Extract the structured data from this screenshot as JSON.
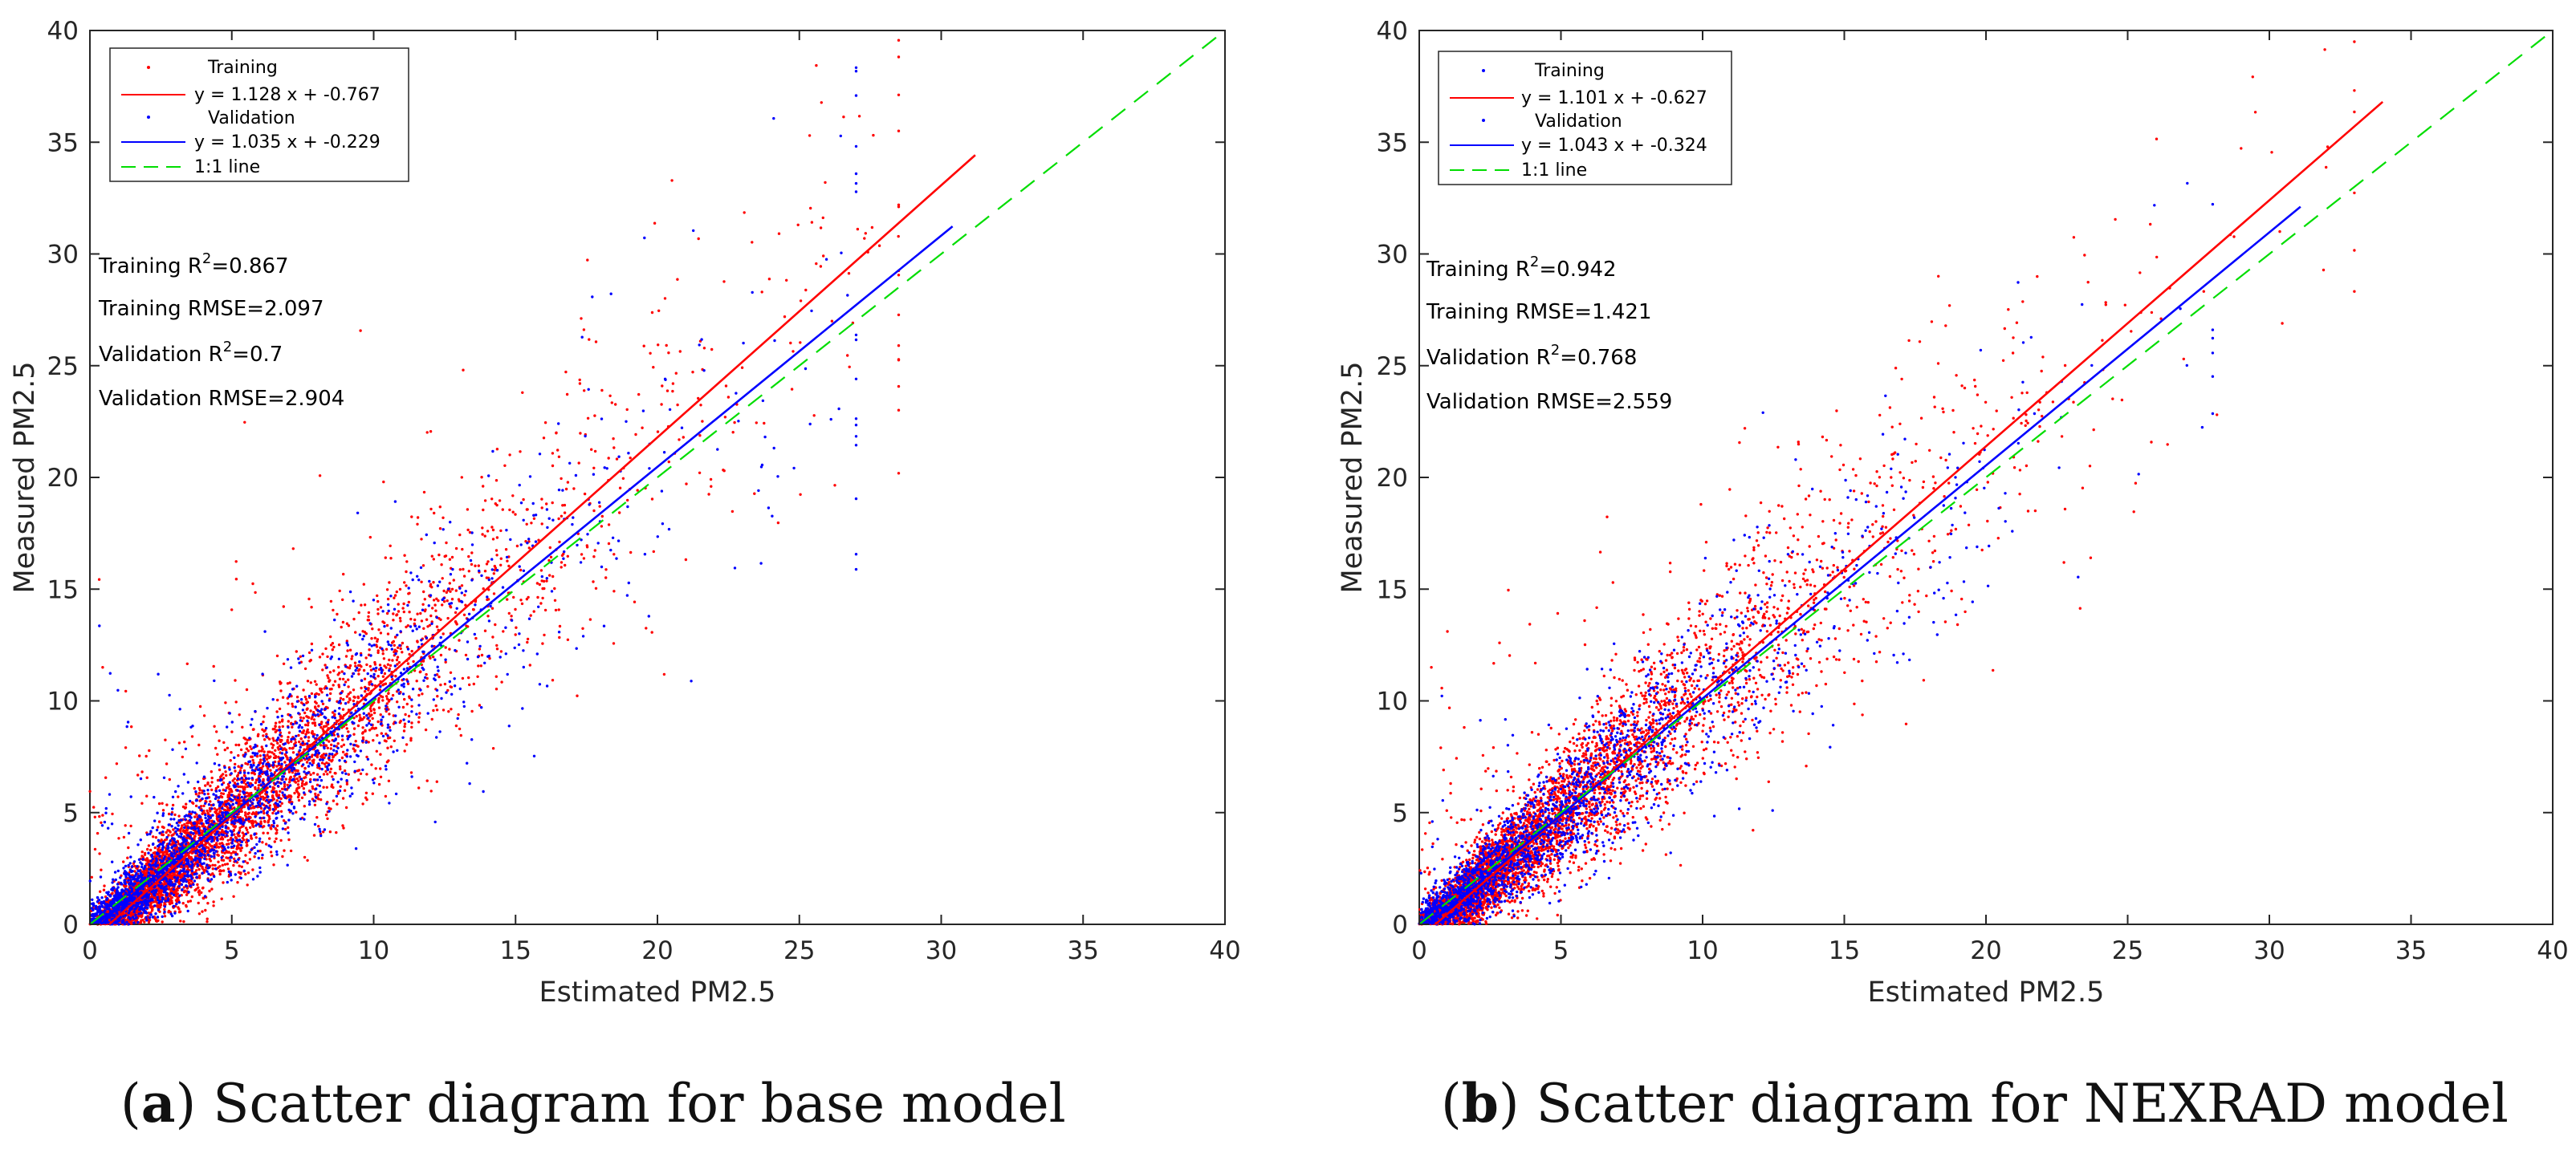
{
  "chart_data": [
    {
      "type": "scatter",
      "panel": "a",
      "caption_letter": "a",
      "caption_text": " Scatter diagram for base model",
      "xlabel": "Estimated PM2.5",
      "ylabel": "Measured PM2.5",
      "xlim": [
        0,
        40
      ],
      "ylim": [
        0,
        40
      ],
      "xticks": [
        0,
        5,
        10,
        15,
        20,
        25,
        30,
        35,
        40
      ],
      "yticks": [
        0,
        5,
        10,
        15,
        20,
        25,
        30,
        35,
        40
      ],
      "legend": [
        "Training",
        "y = 1.128 x + -0.767",
        "Validation",
        "y = 1.035 x + -0.229",
        "1:1 line"
      ],
      "legend_position": "top-left",
      "annotations": {
        "training_r2_prefix": "Training R",
        "training_r2_value": "=0.867",
        "training_rmse": "Training RMSE=2.097",
        "validation_r2_prefix": "Validation R",
        "validation_r2_value": "=0.7",
        "validation_rmse": "Validation RMSE=2.904",
        "superscript": "2"
      },
      "series": [
        {
          "name": "Training",
          "kind": "points",
          "color": "#ff0000",
          "slope": 1.128,
          "intercept": -0.767,
          "x_max": 28.5,
          "n_points": 5000
        },
        {
          "name": "y = 1.128 x + -0.767",
          "kind": "fit",
          "color": "#ff0000",
          "slope": 1.128,
          "intercept": -0.767,
          "x_range": [
            0,
            31.2
          ]
        },
        {
          "name": "Validation",
          "kind": "points",
          "color": "#0000ff",
          "slope": 1.035,
          "intercept": -0.229,
          "x_max": 27,
          "n_points": 2200
        },
        {
          "name": "y = 1.035 x + -0.229",
          "kind": "fit",
          "color": "#0000ff",
          "slope": 1.035,
          "intercept": -0.229,
          "x_range": [
            0,
            30.4
          ]
        },
        {
          "name": "1:1 line",
          "kind": "identity",
          "color": "#00dd00",
          "x_range": [
            0,
            40
          ]
        }
      ],
      "training_r2": 0.867,
      "training_rmse": 2.097,
      "validation_r2": 0.7,
      "validation_rmse": 2.904
    },
    {
      "type": "scatter",
      "panel": "b",
      "caption_letter": "b",
      "caption_text": " Scatter diagram for NEXRAD model",
      "xlabel": "Estimated PM2.5",
      "ylabel": "Measured PM2.5",
      "xlim": [
        0,
        40
      ],
      "ylim": [
        0,
        40
      ],
      "xticks": [
        0,
        5,
        10,
        15,
        20,
        25,
        30,
        35,
        40
      ],
      "yticks": [
        0,
        5,
        10,
        15,
        20,
        25,
        30,
        35,
        40
      ],
      "legend": [
        "Training",
        "y = 1.101 x + -0.627",
        "Validation",
        "y = 1.043 x + -0.324",
        "1:1 line"
      ],
      "legend_position": "top-left",
      "annotations": {
        "training_r2_prefix": "Training R",
        "training_r2_value": "=0.942",
        "training_rmse": "Training RMSE=1.421",
        "validation_r2_prefix": "Validation R",
        "validation_r2_value": "=0.768",
        "validation_rmse": "Validation RMSE=2.559",
        "superscript": "2"
      },
      "series": [
        {
          "name": "Training",
          "kind": "points",
          "color": "#ff0000",
          "slope": 1.101,
          "intercept": -0.627,
          "x_max": 33,
          "n_points": 5000
        },
        {
          "name": "y = 1.101 x + -0.627",
          "kind": "fit",
          "color": "#ff0000",
          "slope": 1.101,
          "intercept": -0.627,
          "x_range": [
            0,
            34.0
          ]
        },
        {
          "name": "Validation",
          "kind": "points",
          "color": "#0000ff",
          "slope": 1.043,
          "intercept": -0.324,
          "x_max": 28,
          "n_points": 2200
        },
        {
          "name": "y = 1.043 x + -0.324",
          "kind": "fit",
          "color": "#0000ff",
          "slope": 1.043,
          "intercept": -0.324,
          "x_range": [
            0,
            31.1
          ]
        },
        {
          "name": "1:1 line",
          "kind": "identity",
          "color": "#00dd00",
          "x_range": [
            0,
            40
          ]
        }
      ],
      "training_r2": 0.942,
      "training_rmse": 1.421,
      "validation_r2": 0.768,
      "validation_rmse": 2.559
    }
  ]
}
